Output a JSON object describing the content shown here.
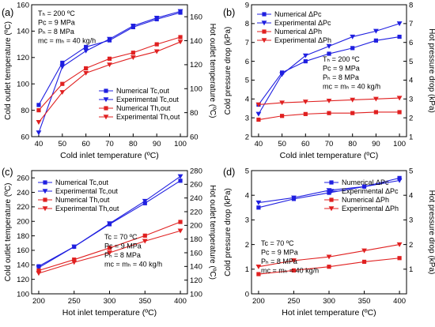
{
  "chart_data": [
    {
      "type": "line",
      "panel_label": "(a)",
      "xlabel": "Cold inlet temperature (ºC)",
      "ylabel_left": "Cold outlet temperature (ºC)",
      "ylabel_right": "Hot outlet temperature (ºC)",
      "xlim": [
        37,
        103
      ],
      "xticks": [
        "40",
        "50",
        "60",
        "70",
        "80",
        "90",
        "100"
      ],
      "ylim_left": [
        60,
        160
      ],
      "yticks_left": [
        "60",
        "80",
        "100",
        "120",
        "140",
        "160"
      ],
      "ylim_right": [
        60,
        170
      ],
      "yticks_right": [
        "60",
        "80",
        "100",
        "120",
        "140",
        "160"
      ],
      "conditions": [
        "Tₕ = 200 ºC",
        "Pc = 9 MPa",
        "Pₕ = 8 MPa",
        "mc = mₕ = 40 kg/h"
      ],
      "legend_position": "bottom-right",
      "x": [
        40,
        50,
        60,
        70,
        80,
        90,
        100
      ],
      "series": [
        {
          "name": "Numerical Tc,out",
          "axis": "left",
          "color": "#1f1fe0",
          "marker": "square",
          "values": [
            84,
            116,
            128,
            133,
            143,
            149,
            154
          ]
        },
        {
          "name": "Experimental Tc,out",
          "axis": "left",
          "color": "#1f1fe0",
          "marker": "triangle-down",
          "values": [
            63,
            113,
            125,
            134,
            144,
            150,
            155
          ]
        },
        {
          "name": "Numerical Th,out",
          "axis": "right",
          "color": "#e02020",
          "marker": "square",
          "values": [
            82,
            104,
            117,
            125,
            130,
            137,
            143
          ]
        },
        {
          "name": "Experimental Th,out",
          "axis": "right",
          "color": "#e02020",
          "marker": "triangle-down",
          "values": [
            72,
            97,
            113,
            120,
            126,
            131,
            139
          ]
        }
      ]
    },
    {
      "type": "line",
      "panel_label": "(b)",
      "xlabel": "Cold inlet temperature (ºC)",
      "ylabel_left": "Cold pressure drop (kPa)",
      "ylabel_right": "Hot pressure drop (kPa)",
      "xlim": [
        37,
        103
      ],
      "xticks": [
        "40",
        "50",
        "60",
        "70",
        "80",
        "90",
        "100"
      ],
      "ylim_left": [
        2,
        9
      ],
      "yticks_left": [
        "2",
        "3",
        "4",
        "5",
        "6",
        "7",
        "8",
        "9"
      ],
      "ylim_right": [
        1,
        8
      ],
      "yticks_right": [
        "1",
        "2",
        "3",
        "4",
        "5",
        "6",
        "7",
        "8"
      ],
      "conditions": [
        "Tₕ = 200 ºC",
        "Pc = 9 MPa",
        "Pₕ = 8 MPa",
        "mc = mₕ = 40 kg/h"
      ],
      "legend_position": "top-left",
      "x": [
        40,
        50,
        60,
        70,
        80,
        90,
        100
      ],
      "series": [
        {
          "name": "Numerical ΔPc",
          "axis": "left",
          "color": "#1f1fe0",
          "marker": "square",
          "values": [
            3.7,
            5.4,
            6.0,
            6.4,
            6.7,
            7.1,
            7.3
          ]
        },
        {
          "name": "Experimental ΔPc",
          "axis": "left",
          "color": "#1f1fe0",
          "marker": "triangle-down",
          "values": [
            3.2,
            5.3,
            6.3,
            6.8,
            7.3,
            7.6,
            8.0
          ]
        },
        {
          "name": "Numerical ΔPh",
          "axis": "right",
          "color": "#e02020",
          "marker": "square",
          "values": [
            1.9,
            2.1,
            2.2,
            2.25,
            2.25,
            2.3,
            2.3
          ]
        },
        {
          "name": "Experimental ΔPh",
          "axis": "right",
          "color": "#e02020",
          "marker": "triangle-down",
          "values": [
            2.7,
            2.8,
            2.85,
            2.9,
            2.95,
            3.0,
            3.05
          ]
        }
      ]
    },
    {
      "type": "line",
      "panel_label": "(c)",
      "xlabel": "Hot inlet temperature (ºC)",
      "ylabel_left": "Cold outlet temperature (ºC)",
      "ylabel_right": "Hot outlet temperature (ºC)",
      "xlim": [
        190,
        410
      ],
      "xticks": [
        "200",
        "250",
        "300",
        "350",
        "400"
      ],
      "ylim_left": [
        100,
        270
      ],
      "yticks_left": [
        "100",
        "120",
        "140",
        "160",
        "180",
        "200",
        "220",
        "240",
        "260"
      ],
      "ylim_right": [
        100,
        280
      ],
      "yticks_right": [
        "100",
        "120",
        "140",
        "160",
        "180",
        "200",
        "220",
        "240",
        "260",
        "280"
      ],
      "conditions": [
        "Tc = 70 ºC",
        "Pc = 9 MPa",
        "Pₕ = 8 MPa",
        "mc = mₕ = 40 kg/h"
      ],
      "legend_position": "top-left",
      "x": [
        200,
        250,
        300,
        350,
        400
      ],
      "series": [
        {
          "name": "Numerical Tc,out",
          "axis": "left",
          "color": "#1f1fe0",
          "marker": "square",
          "values": [
            138,
            165,
            196,
            225,
            256
          ]
        },
        {
          "name": "Experimental Tc,out",
          "axis": "left",
          "color": "#1f1fe0",
          "marker": "triangle-down",
          "values": [
            136,
            165,
            197,
            228,
            262
          ]
        },
        {
          "name": "Numerical Th,out",
          "axis": "right",
          "color": "#e02020",
          "marker": "square",
          "values": [
            134,
            150,
            167,
            185,
            205
          ]
        },
        {
          "name": "Experimental Th,out",
          "axis": "right",
          "color": "#e02020",
          "marker": "triangle-down",
          "values": [
            130,
            146,
            160,
            177,
            192
          ]
        }
      ]
    },
    {
      "type": "line",
      "panel_label": "(d)",
      "xlabel": "Hot inlet temperature (ºC)",
      "ylabel_left": "Cold pressure drop (kPa)",
      "ylabel_right": "Hot pressure drop (kPa)",
      "xlim": [
        190,
        410
      ],
      "xticks": [
        "200",
        "250",
        "300",
        "350",
        "400"
      ],
      "ylim_left": [
        0,
        5
      ],
      "yticks_left": [
        "0",
        "1",
        "2",
        "3",
        "4",
        "5"
      ],
      "ylim_right": [
        0,
        5
      ],
      "yticks_right": [
        "1",
        "2",
        "3",
        "4",
        "5"
      ],
      "conditions": [
        "Tc = 70 ºC",
        "Pc = 9 MPa",
        "Pₕ = 8 MPa",
        "mc = mₕ = 40 kg/h"
      ],
      "legend_position": "top-right",
      "x": [
        200,
        250,
        300,
        350,
        400
      ],
      "series": [
        {
          "name": "Numerical ΔPc",
          "axis": "left",
          "color": "#1f1fe0",
          "marker": "square",
          "values": [
            3.5,
            3.85,
            4.1,
            4.35,
            4.7
          ]
        },
        {
          "name": "Experimental ΔPc",
          "axis": "left",
          "color": "#1f1fe0",
          "marker": "triangle-down",
          "values": [
            3.7,
            3.9,
            4.2,
            4.35,
            4.6
          ]
        },
        {
          "name": "Numerical ΔPh",
          "axis": "right",
          "color": "#e02020",
          "marker": "square",
          "values": [
            0.8,
            0.95,
            1.1,
            1.3,
            1.45
          ]
        },
        {
          "name": "Experimental ΔPh",
          "axis": "right",
          "color": "#e02020",
          "marker": "triangle-down",
          "values": [
            1.1,
            1.35,
            1.5,
            1.75,
            2.0
          ]
        }
      ]
    }
  ]
}
